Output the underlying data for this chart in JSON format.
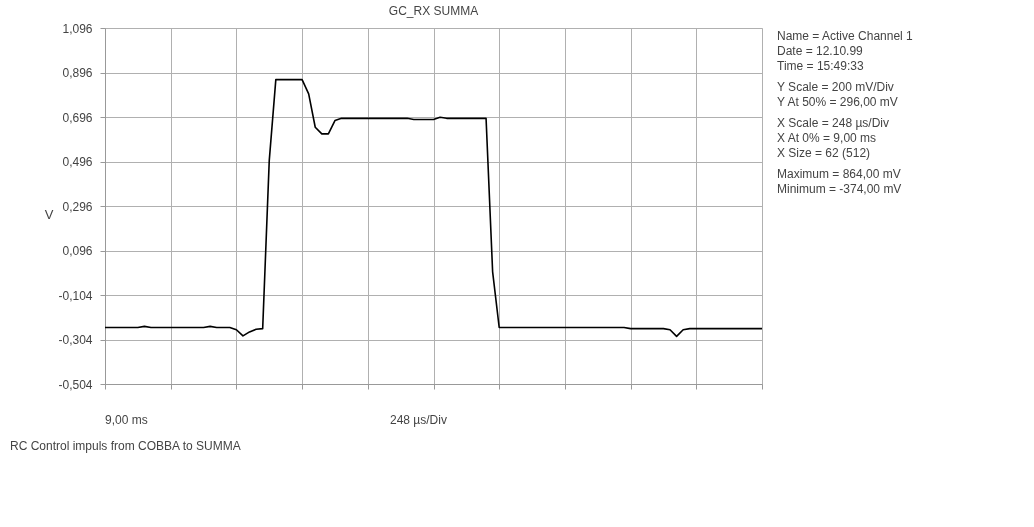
{
  "chart_data": {
    "type": "line",
    "title": "GC_RX SUMMA",
    "ylabel": "V",
    "categories": [
      null,
      null,
      null,
      null,
      null,
      null,
      null,
      null,
      null,
      null,
      null,
      null,
      null,
      null,
      null,
      null,
      null,
      null,
      null,
      null,
      null,
      null,
      null,
      null,
      null,
      null,
      null,
      null,
      null,
      null,
      null,
      null,
      null,
      null,
      null,
      null,
      null,
      null,
      null,
      null,
      null,
      null,
      null,
      null,
      null,
      null,
      null,
      null,
      null,
      null,
      null,
      null,
      null,
      null,
      null,
      null,
      null,
      null,
      null,
      null,
      null,
      null,
      null,
      null,
      null,
      null,
      null,
      null,
      null,
      null,
      null,
      null,
      null,
      null,
      null,
      null,
      null,
      null,
      null,
      null,
      null,
      null,
      null,
      null,
      null,
      null,
      null,
      null,
      null,
      null,
      null,
      null,
      null,
      null,
      null,
      null,
      null,
      null,
      null,
      null,
      null
    ],
    "series": [
      {
        "color": "#000000",
        "values": [
          -0.25,
          -0.25,
          -0.25,
          -0.25,
          -0.25,
          -0.25,
          -0.245,
          -0.25,
          -0.25,
          -0.25,
          -0.25,
          -0.25,
          -0.25,
          -0.25,
          -0.25,
          -0.25,
          -0.245,
          -0.25,
          -0.25,
          -0.25,
          -0.26,
          -0.288,
          -0.27,
          -0.258,
          -0.255,
          0.5,
          0.864,
          0.864,
          0.864,
          0.864,
          0.864,
          0.8,
          0.65,
          0.62,
          0.62,
          0.68,
          0.69,
          0.69,
          0.69,
          0.69,
          0.69,
          0.69,
          0.69,
          0.69,
          0.69,
          0.69,
          0.69,
          0.685,
          0.685,
          0.685,
          0.685,
          0.695,
          0.69,
          0.69,
          0.69,
          0.69,
          0.69,
          0.69,
          0.69,
          0.0,
          -0.25,
          -0.25,
          -0.25,
          -0.25,
          -0.25,
          -0.25,
          -0.25,
          -0.25,
          -0.25,
          -0.25,
          -0.25,
          -0.25,
          -0.25,
          -0.25,
          -0.25,
          -0.25,
          -0.25,
          -0.25,
          -0.25,
          -0.25,
          -0.255,
          -0.255,
          -0.255,
          -0.255,
          -0.255,
          -0.255,
          -0.26,
          -0.29,
          -0.26,
          -0.255,
          -0.255,
          -0.255,
          -0.255,
          -0.255,
          -0.255,
          -0.255,
          -0.255,
          -0.255,
          -0.255,
          -0.255,
          -0.255
        ]
      }
    ],
    "ylim": [
      -0.504,
      1.096
    ],
    "yticks": [
      {
        "value": -0.504,
        "label": "-0,504"
      },
      {
        "value": -0.304,
        "label": "-0,304"
      },
      {
        "value": -0.104,
        "label": "-0,104"
      },
      {
        "value": 0.096,
        "label": "0,096"
      },
      {
        "value": 0.296,
        "label": "0,296"
      },
      {
        "value": 0.496,
        "label": "0,496"
      },
      {
        "value": 0.696,
        "label": "0,696"
      },
      {
        "value": 0.896,
        "label": "0,896"
      },
      {
        "value": 1.096,
        "label": "1,096"
      }
    ],
    "tick_labels": "y",
    "grid": true,
    "marker": "none",
    "line_style": "solid",
    "annotations": [
      "9,00 ms",
      "248 µs/Div",
      "RC Control impuls from COBBA to SUMMA",
      "Name = Active Channel 1",
      "Date = 12.10.99",
      "Time = 15:49:33",
      "Y Scale = 200 mV/Div",
      "Y At 50% = 296,00 mV",
      "X Scale = 248 µs/Div",
      "X At 0% = 9,00 ms",
      "X Size = 62 (512)",
      "Maximum = 864,00 mV",
      "Minimum = -374,00 mV"
    ]
  }
}
